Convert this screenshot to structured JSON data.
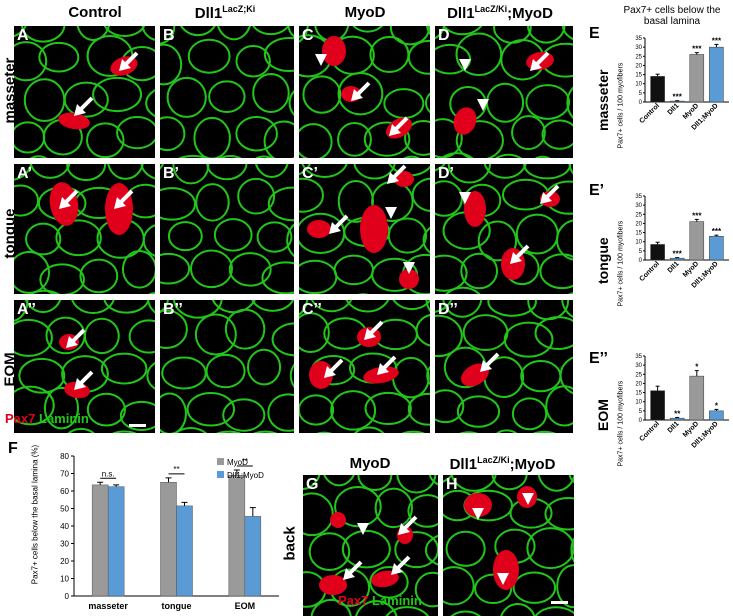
{
  "columns": {
    "control": "Control",
    "dll1": "Dll1",
    "dll1_sup": "LacZ;Ki",
    "myod": "MyoD",
    "dll1myod": "Dll1",
    "dll1myod_sup": "LacZ/Ki",
    "dll1myod_suffix": ";MyoD"
  },
  "rows": {
    "masseter": "masseter",
    "tongue": "tongue",
    "eom": "EOM",
    "back": "back"
  },
  "panel_labels": {
    "A": "A",
    "B": "B",
    "C": "C",
    "D": "D",
    "A1": "A’",
    "B1": "B’",
    "C1": "C’",
    "D1": "D’",
    "A2": "A’’",
    "B2": "B’’",
    "C2": "C’’",
    "D2": "D’’",
    "G": "G",
    "H": "H",
    "E": "E",
    "E1": "E’",
    "E2": "E’’",
    "F": "F"
  },
  "stain": {
    "pax7": "Pax7",
    "laminin": "Laminin"
  },
  "bottom_heads": {
    "myod": "MyoD",
    "dll1myod": "Dll1",
    "dll1myod_sup": "LacZ/Ki",
    "dll1myod_suffix": ";MyoD"
  },
  "colors": {
    "red": "#e0001b",
    "green": "#22c61a",
    "dark_bar": "#111111",
    "grey_bar": "#9a9a9a",
    "blue_bar": "#5b9bd5"
  },
  "chart_data": [
    {
      "id": "E",
      "type": "bar",
      "title": "Pax7+ cells below the basal lamina",
      "side_label": "masseter",
      "ylabel": "Pax7+ cells / 100 myofibers",
      "ylim": [
        0,
        35
      ],
      "yticks": [
        0,
        5,
        10,
        15,
        20,
        25,
        30,
        35
      ],
      "categories": [
        "Control",
        "Dll1",
        "MyoD",
        "Dll1;MyoD"
      ],
      "values": [
        14,
        0.5,
        26,
        30
      ],
      "errors": [
        1.2,
        0.2,
        1,
        1.5
      ],
      "sig": [
        "",
        "***",
        "***",
        "***"
      ]
    },
    {
      "id": "E1",
      "type": "bar",
      "side_label": "tongue",
      "ylabel": "Pax7+ cells / 100 myofibers",
      "ylim": [
        0,
        35
      ],
      "yticks": [
        0,
        5,
        10,
        15,
        20,
        25,
        30,
        35
      ],
      "categories": [
        "Control",
        "Dll1",
        "MyoD",
        "Dll1;MyoD"
      ],
      "values": [
        8.5,
        1,
        21,
        13
      ],
      "errors": [
        1.2,
        0.3,
        1.2,
        0.6
      ],
      "sig": [
        "",
        "***",
        "***",
        "***"
      ]
    },
    {
      "id": "E2",
      "type": "bar",
      "side_label": "EOM",
      "ylabel": "Pax7+ cells / 100 myofibers",
      "ylim": [
        0,
        35
      ],
      "yticks": [
        0,
        5,
        10,
        15,
        20,
        25,
        30,
        35
      ],
      "categories": [
        "Control",
        "Dll1",
        "MyoD",
        "Dll1;MyoD"
      ],
      "values": [
        16,
        1,
        24,
        5
      ],
      "errors": [
        2.5,
        0.4,
        3,
        0.8
      ],
      "sig": [
        "",
        "**",
        "*",
        "*"
      ]
    },
    {
      "id": "F",
      "type": "bar",
      "ylabel": "Pax7+ cells below the basal lamina (%)",
      "ylim": [
        0,
        80
      ],
      "yticks": [
        0,
        10,
        20,
        30,
        40,
        50,
        60,
        70,
        80
      ],
      "categories": [
        "masseter",
        "tongue",
        "EOM"
      ],
      "series": [
        {
          "name": "MyoD",
          "values": [
            63.5,
            65,
            69
          ],
          "errors": [
            1.5,
            2.5,
            3
          ]
        },
        {
          "name": "Dll1;MyoD",
          "values": [
            62.5,
            51.5,
            45.5
          ],
          "errors": [
            1,
            2,
            5
          ]
        }
      ],
      "sig": [
        "n.s.",
        "**",
        "**"
      ],
      "legend": "top-right"
    }
  ]
}
